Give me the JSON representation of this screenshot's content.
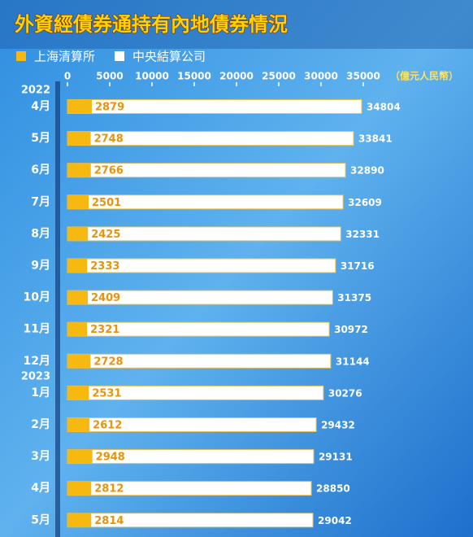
{
  "chart_data": {
    "type": "bar",
    "orientation": "horizontal",
    "title": "外資經債券通持有內地債券情況",
    "x_unit_label": "（億元人民幣）",
    "group_labels": [
      "2022",
      "2023"
    ],
    "categories": [
      "4月",
      "5月",
      "6月",
      "7月",
      "8月",
      "9月",
      "10月",
      "11月",
      "12月",
      "1月",
      "2月",
      "3月",
      "4月",
      "5月"
    ],
    "series": [
      {
        "name": "上海清算所",
        "color": "#f7b90f",
        "values": [
          2879,
          2748,
          2766,
          2501,
          2425,
          2333,
          2409,
          2321,
          2728,
          2531,
          2612,
          2948,
          2812,
          2814
        ]
      },
      {
        "name": "中央結算公司",
        "color": "#ffffff",
        "values": [
          34804,
          33841,
          32890,
          32609,
          32331,
          31716,
          31375,
          30972,
          31144,
          30276,
          29432,
          29131,
          28850,
          29042
        ]
      }
    ],
    "xlim": [
      0,
      35000
    ],
    "xticks": [
      0,
      5000,
      10000,
      15000,
      20000,
      25000,
      30000,
      35000
    ]
  }
}
